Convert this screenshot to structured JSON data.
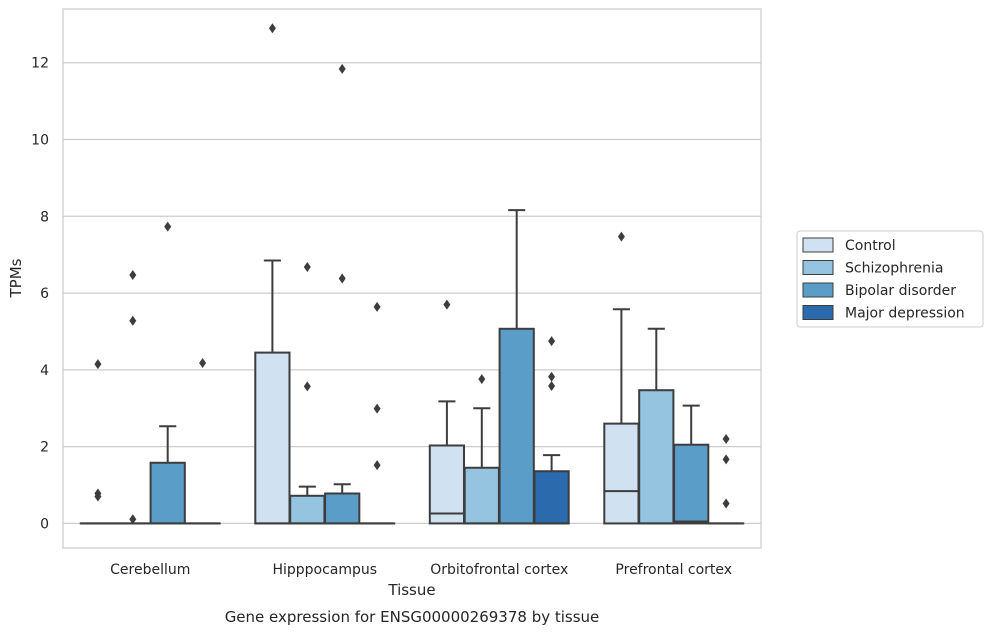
{
  "chart_data": {
    "type": "boxplot",
    "title": "",
    "caption": "Gene expression for ENSG00000269378 by tissue",
    "xlabel": "Tissue",
    "ylabel": "TPMs",
    "ylim": [
      -0.64,
      13.4
    ],
    "yticks": [
      0,
      2,
      4,
      6,
      8,
      10,
      12
    ],
    "grid": true,
    "legend_position": "right",
    "categories": [
      "Cerebellum",
      "Hipppocampus",
      "Orbitofrontal cortex",
      "Prefrontal cortex"
    ],
    "series": [
      {
        "name": "Control",
        "color": "#d0e1f2",
        "boxes": [
          {
            "q1": 0,
            "median": 0,
            "q3": 0,
            "whisker_low": 0,
            "whisker_high": 0,
            "outliers": [
              4.15,
              0.78,
              0.7
            ]
          },
          {
            "q1": 0,
            "median": 0,
            "q3": 4.45,
            "whisker_low": 0,
            "whisker_high": 6.85,
            "outliers": [
              12.9
            ]
          },
          {
            "q1": 0,
            "median": 0.26,
            "q3": 2.03,
            "whisker_low": 0,
            "whisker_high": 3.18,
            "outliers": [
              5.7
            ]
          },
          {
            "q1": 0,
            "median": 0.84,
            "q3": 2.6,
            "whisker_low": 0,
            "whisker_high": 5.58,
            "outliers": [
              7.47
            ]
          }
        ]
      },
      {
        "name": "Schizophrenia",
        "color": "#94c4df",
        "boxes": [
          {
            "q1": 0,
            "median": 0,
            "q3": 0,
            "whisker_low": 0,
            "whisker_high": 0,
            "outliers": [
              6.47,
              5.28,
              0.11
            ]
          },
          {
            "q1": 0,
            "median": 0,
            "q3": 0.72,
            "whisker_low": 0,
            "whisker_high": 0.96,
            "outliers": [
              6.68,
              3.57
            ]
          },
          {
            "q1": 0,
            "median": 0,
            "q3": 1.45,
            "whisker_low": 0,
            "whisker_high": 3.0,
            "outliers": [
              3.76
            ]
          },
          {
            "q1": 0,
            "median": 0,
            "q3": 3.47,
            "whisker_low": 0,
            "whisker_high": 5.07,
            "outliers": []
          }
        ]
      },
      {
        "name": "Bipolar disorder",
        "color": "#5b9dc9",
        "boxes": [
          {
            "q1": 0,
            "median": 0,
            "q3": 1.58,
            "whisker_low": 0,
            "whisker_high": 2.53,
            "outliers": [
              7.73
            ]
          },
          {
            "q1": 0,
            "median": 0,
            "q3": 0.78,
            "whisker_low": 0,
            "whisker_high": 1.02,
            "outliers": [
              6.38,
              11.84
            ]
          },
          {
            "q1": 0,
            "median": 0,
            "q3": 5.07,
            "whisker_low": 0,
            "whisker_high": 8.16,
            "outliers": []
          },
          {
            "q1": 0,
            "median": 0.05,
            "q3": 2.05,
            "whisker_low": 0,
            "whisker_high": 3.07,
            "outliers": []
          }
        ]
      },
      {
        "name": "Major depression",
        "color": "#2a6aad",
        "boxes": [
          {
            "q1": 0,
            "median": 0,
            "q3": 0,
            "whisker_low": 0,
            "whisker_high": 0,
            "outliers": [
              4.18
            ]
          },
          {
            "q1": 0,
            "median": 0,
            "q3": 0,
            "whisker_low": 0,
            "whisker_high": 0,
            "outliers": [
              5.64,
              2.99,
              1.52
            ]
          },
          {
            "q1": 0,
            "median": 0,
            "q3": 1.36,
            "whisker_low": 0,
            "whisker_high": 1.78,
            "outliers": [
              4.75,
              3.82,
              3.58
            ]
          },
          {
            "q1": 0,
            "median": 0,
            "q3": 0,
            "whisker_low": 0,
            "whisker_high": 0,
            "outliers": [
              2.2,
              1.67,
              0.52
            ]
          }
        ]
      }
    ]
  }
}
